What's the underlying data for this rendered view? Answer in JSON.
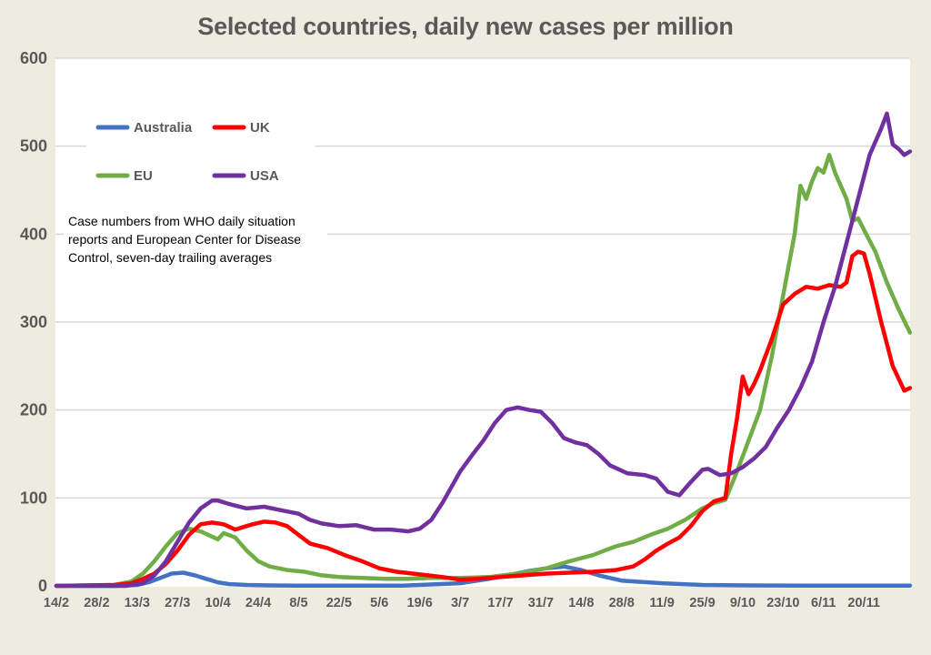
{
  "chart_data": {
    "type": "line",
    "title": "Selected countries, daily new cases per million",
    "xlabel": "",
    "ylabel": "",
    "ylim": [
      0,
      600
    ],
    "yticks": [
      "0",
      "100",
      "200",
      "300",
      "400",
      "500",
      "600"
    ],
    "ytick_values": [
      0,
      100,
      200,
      300,
      400,
      500,
      600
    ],
    "x_unit": "days since 14/2",
    "xlim": [
      0,
      296
    ],
    "xticks": [
      "14/2",
      "28/2",
      "13/3",
      "27/3",
      "10/4",
      "24/4",
      "8/5",
      "22/5",
      "5/6",
      "19/6",
      "3/7",
      "17/7",
      "31/7",
      "14/8",
      "28/8",
      "11/9",
      "25/9",
      "9/10",
      "23/10",
      "6/11",
      "20/11"
    ],
    "xtick_values": [
      0,
      14,
      28,
      42,
      56,
      70,
      84,
      98,
      112,
      126,
      140,
      154,
      168,
      182,
      196,
      210,
      224,
      238,
      252,
      266,
      280
    ],
    "grid": "horizontal",
    "legend_position": "top-left",
    "annotation": "Case numbers from WHO daily situation reports and European Center for Disease Control, seven-day trailing averages",
    "annotation_lines": [
      "Case numbers from WHO daily situation",
      "reports and European Center for Disease",
      "Control, seven-day trailing averages"
    ],
    "series": [
      {
        "name": "Australia",
        "color": "#4472c4",
        "x": [
          0,
          20,
          28,
          32,
          36,
          40,
          44,
          48,
          52,
          56,
          60,
          66,
          74,
          84,
          100,
          120,
          140,
          150,
          158,
          164,
          170,
          176,
          182,
          188,
          196,
          210,
          224,
          240,
          260,
          280,
          296
        ],
        "y": [
          0,
          0,
          1,
          4,
          9,
          14,
          15,
          12,
          8,
          4,
          2,
          1,
          0.5,
          0.3,
          0.2,
          0.3,
          3,
          8,
          13,
          17,
          20,
          22,
          18,
          12,
          6,
          3,
          1,
          0.5,
          0.3,
          0.3,
          0.3
        ]
      },
      {
        "name": "UK",
        "color": "#ff0000",
        "x": [
          0,
          20,
          26,
          30,
          34,
          38,
          42,
          46,
          50,
          54,
          58,
          62,
          64,
          68,
          72,
          76,
          80,
          84,
          88,
          94,
          100,
          106,
          112,
          118,
          126,
          134,
          140,
          146,
          154,
          162,
          170,
          178,
          186,
          194,
          200,
          204,
          208,
          212,
          216,
          220,
          224,
          228,
          232,
          234,
          236,
          238,
          240,
          242,
          244,
          248,
          252,
          256,
          260,
          264,
          268,
          272,
          274,
          276,
          278,
          280,
          282,
          286,
          290,
          294,
          296
        ],
        "y": [
          0,
          1,
          3,
          8,
          14,
          25,
          40,
          58,
          70,
          72,
          70,
          64,
          66,
          70,
          73,
          72,
          68,
          58,
          48,
          43,
          35,
          28,
          20,
          16,
          13,
          10,
          7,
          8,
          10,
          12,
          14,
          15,
          16,
          18,
          22,
          30,
          40,
          48,
          55,
          68,
          85,
          96,
          100,
          150,
          190,
          238,
          218,
          230,
          245,
          280,
          320,
          332,
          340,
          338,
          342,
          340,
          345,
          375,
          380,
          378,
          355,
          300,
          250,
          222,
          225
        ]
      },
      {
        "name": "EU",
        "color": "#70ad47",
        "x": [
          0,
          20,
          26,
          30,
          34,
          38,
          42,
          46,
          50,
          54,
          56,
          58,
          62,
          66,
          70,
          74,
          80,
          86,
          92,
          98,
          106,
          114,
          122,
          130,
          140,
          150,
          160,
          170,
          178,
          186,
          194,
          200,
          206,
          212,
          218,
          224,
          228,
          232,
          236,
          240,
          244,
          248,
          252,
          256,
          258,
          260,
          262,
          264,
          266,
          268,
          270,
          274,
          276,
          278,
          280,
          284,
          288,
          292,
          296
        ],
        "y": [
          0,
          1,
          5,
          14,
          28,
          45,
          60,
          65,
          62,
          56,
          53,
          60,
          55,
          40,
          28,
          22,
          18,
          16,
          12,
          10,
          9,
          8,
          8,
          9,
          9,
          10,
          14,
          20,
          28,
          35,
          45,
          50,
          58,
          65,
          75,
          88,
          94,
          98,
          130,
          165,
          200,
          260,
          330,
          400,
          455,
          440,
          460,
          475,
          470,
          490,
          470,
          440,
          415,
          418,
          405,
          380,
          345,
          315,
          288
        ]
      },
      {
        "name": "USA",
        "color": "#7030a0",
        "x": [
          0,
          24,
          30,
          34,
          38,
          42,
          46,
          50,
          54,
          56,
          60,
          66,
          72,
          78,
          84,
          88,
          92,
          98,
          104,
          110,
          116,
          122,
          126,
          130,
          134,
          140,
          144,
          148,
          152,
          156,
          160,
          164,
          168,
          172,
          176,
          180,
          184,
          188,
          192,
          198,
          204,
          208,
          212,
          216,
          220,
          224,
          226,
          230,
          234,
          238,
          242,
          246,
          250,
          254,
          258,
          262,
          266,
          270,
          274,
          278,
          282,
          286,
          288,
          290,
          292,
          294,
          296
        ],
        "y": [
          0,
          0,
          3,
          12,
          28,
          50,
          72,
          88,
          97,
          97,
          93,
          88,
          90,
          86,
          82,
          75,
          71,
          68,
          69,
          64,
          64,
          62,
          65,
          75,
          95,
          130,
          148,
          165,
          185,
          200,
          203,
          200,
          198,
          185,
          168,
          163,
          160,
          150,
          137,
          128,
          126,
          122,
          107,
          103,
          118,
          132,
          133,
          126,
          128,
          135,
          145,
          158,
          180,
          200,
          225,
          255,
          300,
          340,
          390,
          440,
          490,
          520,
          537,
          502,
          497,
          490,
          494
        ]
      }
    ]
  }
}
